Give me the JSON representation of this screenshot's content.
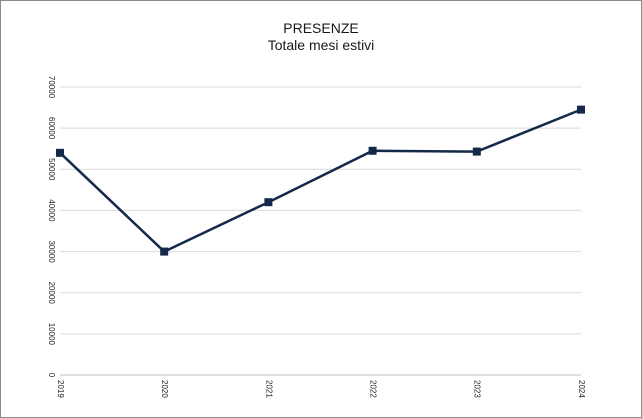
{
  "chart_data": {
    "type": "line",
    "title": "PRESENZE",
    "subtitle": "Totale mesi estivi",
    "xlabel": "",
    "ylabel": "",
    "categories": [
      "2019",
      "2020",
      "2021",
      "2022",
      "2023",
      "2024"
    ],
    "series": [
      {
        "values": [
          54000,
          30000,
          42000,
          54500,
          54300,
          64500
        ]
      }
    ],
    "ylim": [
      0,
      70000
    ],
    "yticks": [
      "0",
      "10000",
      "20000",
      "30000",
      "40000",
      "50000",
      "60000",
      "70000"
    ],
    "grid": true,
    "legend": "none",
    "colors": {
      "line": "#14284a",
      "marker": "#14284a",
      "grid": "#d9d9d9",
      "axis": "#bfbfbf"
    }
  }
}
